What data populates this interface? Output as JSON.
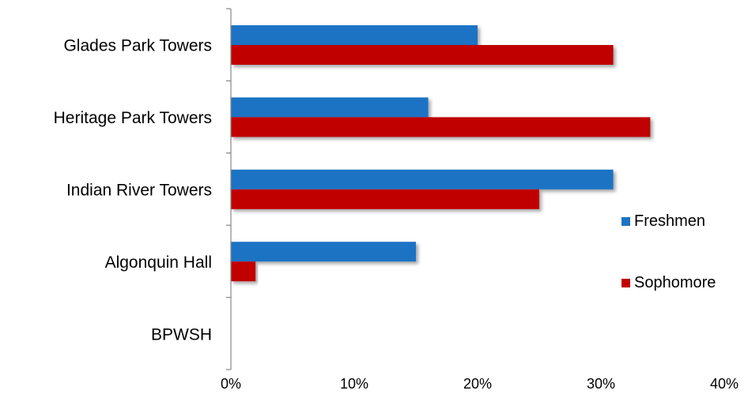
{
  "chart_data": {
    "type": "bar",
    "orientation": "horizontal",
    "categories": [
      "Glades Park Towers",
      "Heritage Park Towers",
      "Indian River Towers",
      "Algonquin Hall",
      "BPWSH"
    ],
    "series": [
      {
        "name": "Freshmen",
        "color": "#1f73c4",
        "values": [
          20,
          16,
          31,
          15,
          0
        ]
      },
      {
        "name": "Sophomore",
        "color": "#c00000",
        "values": [
          31,
          34,
          25,
          2,
          0
        ]
      }
    ],
    "xlim": [
      0,
      40
    ],
    "x_ticks": [
      "0%",
      "10%",
      "20%",
      "30%",
      "40%"
    ],
    "grid": false,
    "legend_position": "right",
    "bar_shadow": true
  }
}
